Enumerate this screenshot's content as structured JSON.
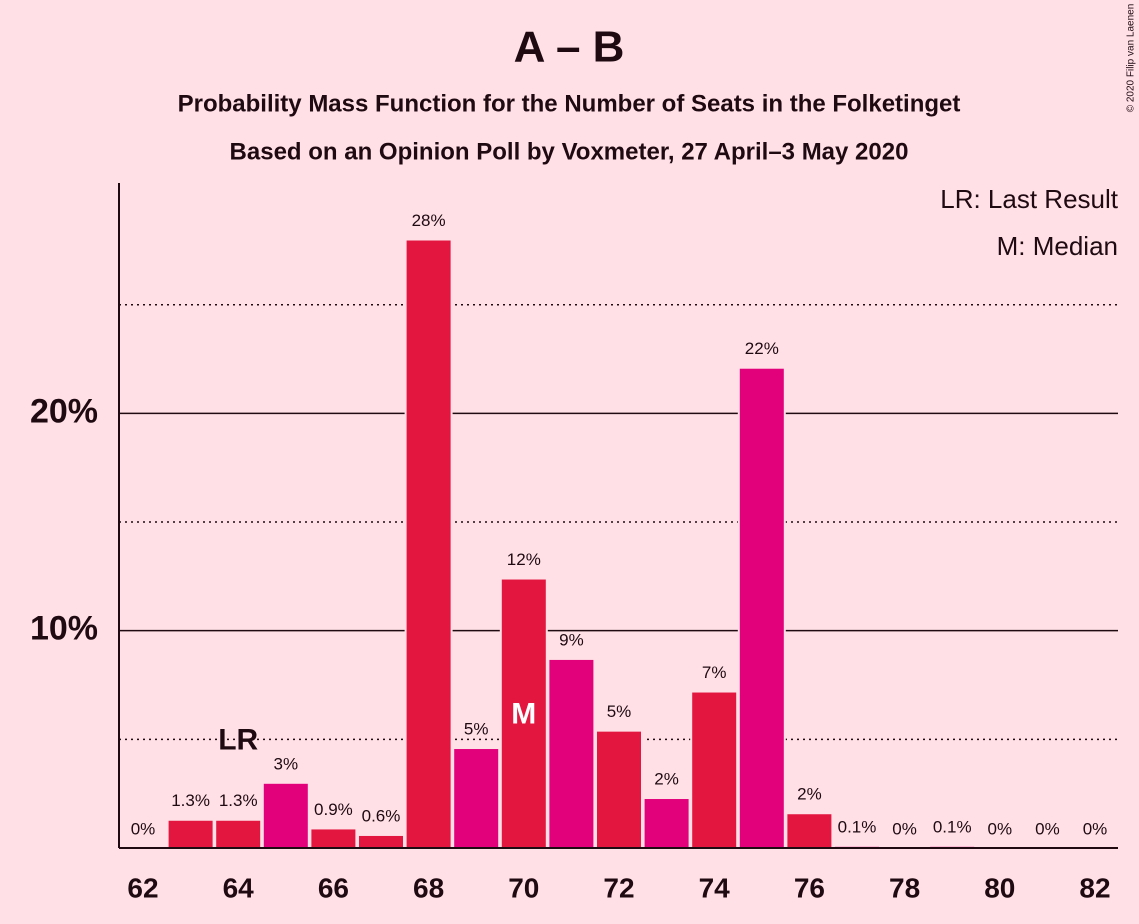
{
  "chart_data": {
    "type": "bar",
    "title": "A – B",
    "subtitle": [
      "Probability Mass Function for the Number of Seats in the Folketinget",
      "Based on an Opinion Poll by Voxmeter, 27 April–3 May 2020"
    ],
    "categories": [
      62,
      null,
      64,
      null,
      66,
      null,
      68,
      null,
      70,
      null,
      72,
      null,
      74,
      null,
      76,
      null,
      78,
      null,
      80,
      null,
      82
    ],
    "values": [
      0,
      1.3,
      1.3,
      3,
      0.9,
      0.6,
      28,
      4.6,
      12.4,
      8.7,
      5.4,
      2.3,
      7.2,
      22.1,
      1.6,
      0.1,
      0,
      0.1,
      0,
      0,
      0
    ],
    "value_labels": [
      "0%",
      "1.3%",
      "1.3%",
      "3%",
      "0.9%",
      "0.6%",
      "28%",
      "5%",
      "12%",
      "9%",
      "5%",
      "2%",
      "7%",
      "22%",
      "2%",
      "0.1%",
      "0%",
      "0.1%",
      "0%",
      "0%",
      "0%"
    ],
    "colors": [
      "#e3163f",
      "#e3163f",
      "#e3163f",
      "#e2007b",
      "#e3163f",
      "#e3163f",
      "#e3163f",
      "#e2007b",
      "#e3163f",
      "#e2007b",
      "#e3163f",
      "#e2007b",
      "#e3163f",
      "#e2007b",
      "#e3163f",
      "#e2007b",
      "#e3163f",
      "#e2007b",
      "#e3163f",
      "#e2007b",
      "#e3163f"
    ],
    "ylim": [
      0,
      30.6
    ],
    "yticks": [
      {
        "value": 10,
        "label": "10%"
      },
      {
        "value": 20,
        "label": "20%"
      }
    ],
    "minor_yticks": [
      5,
      15,
      25
    ],
    "grid": true,
    "annotations": [
      {
        "text": "LR",
        "x": 64,
        "placement": "above"
      },
      {
        "text": "M",
        "x": 70,
        "placement": "inside"
      }
    ],
    "legend": [
      "LR: Last Result",
      "M: Median"
    ],
    "copyright": "© 2020 Filip van Laenen"
  }
}
